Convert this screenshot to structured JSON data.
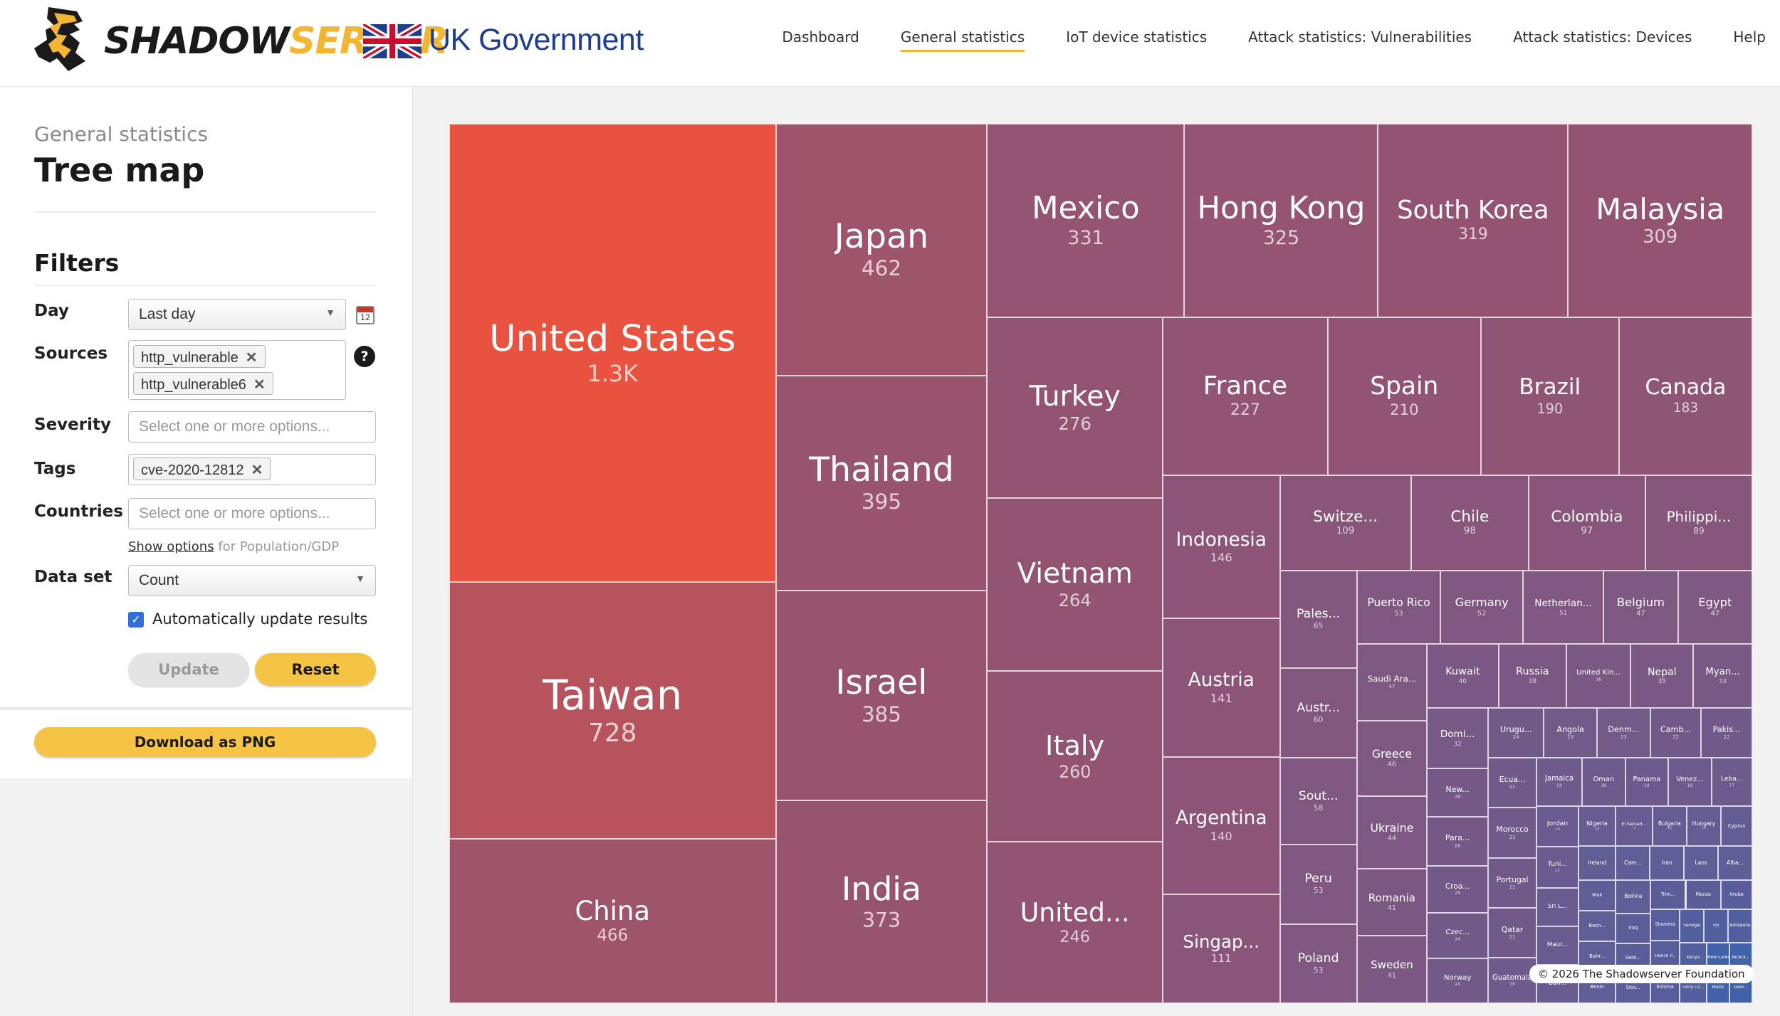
{
  "header": {
    "logo_text_a": "SHADOW",
    "logo_text_b": "SERVER",
    "gov_text": "UK Government",
    "nav": [
      {
        "label": "Dashboard",
        "active": false
      },
      {
        "label": "General statistics",
        "active": true
      },
      {
        "label": "IoT device statistics",
        "active": false
      },
      {
        "label": "Attack statistics: Vulnerabilities",
        "active": false
      },
      {
        "label": "Attack statistics: Devices",
        "active": false
      },
      {
        "label": "Help",
        "active": false
      }
    ]
  },
  "sidebar": {
    "subtitle": "General statistics",
    "title": "Tree map",
    "filters_heading": "Filters",
    "day_label": "Day",
    "day_value": "Last day",
    "sources_label": "Sources",
    "sources": [
      "http_vulnerable",
      "http_vulnerable6"
    ],
    "severity_label": "Severity",
    "severity_placeholder": "Select one or more options...",
    "tags_label": "Tags",
    "tags": [
      "cve-2020-12812"
    ],
    "countries_label": "Countries",
    "countries_placeholder": "Select one or more options...",
    "show_options_link": "Show options",
    "show_options_suffix": " for Population/GDP",
    "dataset_label": "Data set",
    "dataset_value": "Count",
    "auto_update_label": "Automatically update results",
    "auto_update_checked": true,
    "update_button": "Update",
    "reset_button": "Reset",
    "download_button": "Download as PNG",
    "calendar_icon": "calendar-icon",
    "help_glyph": "?"
  },
  "chart_data": {
    "type": "treemap",
    "colors": {
      "high": "#e9523f",
      "mid": "#935472",
      "low": "#4062ab"
    },
    "items": [
      {
        "name": "United States",
        "label": "United States",
        "display": "1.3K",
        "value": 1300
      },
      {
        "name": "Taiwan",
        "label": "Taiwan",
        "display": "728",
        "value": 728
      },
      {
        "name": "China",
        "label": "China",
        "display": "466",
        "value": 466
      },
      {
        "name": "Japan",
        "label": "Japan",
        "display": "462",
        "value": 462
      },
      {
        "name": "Thailand",
        "label": "Thailand",
        "display": "395",
        "value": 395
      },
      {
        "name": "Israel",
        "label": "Israel",
        "display": "385",
        "value": 385
      },
      {
        "name": "India",
        "label": "India",
        "display": "373",
        "value": 373
      },
      {
        "name": "Mexico",
        "label": "Mexico",
        "display": "331",
        "value": 331
      },
      {
        "name": "Hong Kong",
        "label": "Hong Kong",
        "display": "325",
        "value": 325
      },
      {
        "name": "South Korea",
        "label": "South Korea",
        "display": "319",
        "value": 319
      },
      {
        "name": "Malaysia",
        "label": "Malaysia",
        "display": "309",
        "value": 309
      },
      {
        "name": "Turkey",
        "label": "Turkey",
        "display": "276",
        "value": 276
      },
      {
        "name": "Vietnam",
        "label": "Vietnam",
        "display": "264",
        "value": 264
      },
      {
        "name": "Italy",
        "label": "Italy",
        "display": "260",
        "value": 260
      },
      {
        "name": "United...",
        "label": "United...",
        "display": "246",
        "value": 246
      },
      {
        "name": "France",
        "label": "France",
        "display": "227",
        "value": 227
      },
      {
        "name": "Spain",
        "label": "Spain",
        "display": "210",
        "value": 210
      },
      {
        "name": "Brazil",
        "label": "Brazil",
        "display": "190",
        "value": 190
      },
      {
        "name": "Canada",
        "label": "Canada",
        "display": "183",
        "value": 183
      },
      {
        "name": "Indonesia",
        "label": "Indonesia",
        "display": "146",
        "value": 146
      },
      {
        "name": "Austria",
        "label": "Austria",
        "display": "141",
        "value": 141
      },
      {
        "name": "Argentina",
        "label": "Argentina",
        "display": "140",
        "value": 140
      },
      {
        "name": "Singap...",
        "label": "Singap...",
        "display": "111",
        "value": 111
      },
      {
        "name": "Switze...",
        "label": "Switze...",
        "display": "109",
        "value": 109
      },
      {
        "name": "Chile",
        "label": "Chile",
        "display": "98",
        "value": 98
      },
      {
        "name": "Colombia",
        "label": "Colombia",
        "display": "97",
        "value": 97
      },
      {
        "name": "Philippi...",
        "label": "Philippi...",
        "display": "89",
        "value": 89
      },
      {
        "name": "Pales...",
        "label": "Pales...",
        "display": "65",
        "value": 65
      },
      {
        "name": "Austr...",
        "label": "Austr...",
        "display": "60",
        "value": 60
      },
      {
        "name": "Sout...",
        "label": "Sout...",
        "display": "58",
        "value": 58
      },
      {
        "name": "Peru",
        "label": "Peru",
        "display": "53",
        "value": 53
      },
      {
        "name": "Poland",
        "label": "Poland",
        "display": "53",
        "value": 53
      },
      {
        "name": "Puerto Rico",
        "label": "Puerto Rico",
        "display": "53",
        "value": 53
      },
      {
        "name": "Germany",
        "label": "Germany",
        "display": "52",
        "value": 52
      },
      {
        "name": "Netherlan...",
        "label": "Netherlan...",
        "display": "51",
        "value": 51
      },
      {
        "name": "Belgium",
        "label": "Belgium",
        "display": "47",
        "value": 47
      },
      {
        "name": "Egypt",
        "label": "Egypt",
        "display": "47",
        "value": 47
      },
      {
        "name": "Saudi Ara...",
        "label": "Saudi Ara...",
        "display": "47",
        "value": 47
      },
      {
        "name": "Greece",
        "label": "Greece",
        "display": "46",
        "value": 46
      },
      {
        "name": "Ukraine",
        "label": "Ukraine",
        "display": "44",
        "value": 44
      },
      {
        "name": "Romania",
        "label": "Romania",
        "display": "41",
        "value": 41
      },
      {
        "name": "Sweden",
        "label": "Sweden",
        "display": "41",
        "value": 41
      },
      {
        "name": "Kuwait",
        "label": "Kuwait",
        "display": "40",
        "value": 40
      },
      {
        "name": "Russia",
        "label": "Russia",
        "display": "38",
        "value": 38
      },
      {
        "name": "United Kin...",
        "label": "United Kin...",
        "display": "36",
        "value": 36
      },
      {
        "name": "Nepal",
        "label": "Nepal",
        "display": "35",
        "value": 35
      },
      {
        "name": "Myan...",
        "label": "Myan...",
        "display": "33",
        "value": 33
      },
      {
        "name": "Domi...",
        "label": "Domi...",
        "display": "32",
        "value": 32
      },
      {
        "name": "New...",
        "label": "New...",
        "display": "26",
        "value": 26
      },
      {
        "name": "Para...",
        "label": "Para...",
        "display": "26",
        "value": 26
      },
      {
        "name": "Croa...",
        "label": "Croa...",
        "display": "25",
        "value": 25
      },
      {
        "name": "Czec...",
        "label": "Czec...",
        "display": "24",
        "value": 24
      },
      {
        "name": "Norway",
        "label": "Norway",
        "display": "24",
        "value": 24
      },
      {
        "name": "Urugu...",
        "label": "Urugu...",
        "display": "24",
        "value": 24
      },
      {
        "name": "Angola",
        "label": "Angola",
        "display": "23",
        "value": 23
      },
      {
        "name": "Denm...",
        "label": "Denm...",
        "display": "23",
        "value": 23
      },
      {
        "name": "Camb...",
        "label": "Camb...",
        "display": "22",
        "value": 22
      },
      {
        "name": "Pakis...",
        "label": "Pakis...",
        "display": "22",
        "value": 22
      },
      {
        "name": "Ecua...",
        "label": "Ecua...",
        "display": "21",
        "value": 21
      },
      {
        "name": "Morocco",
        "label": "Morocco",
        "display": "21",
        "value": 21
      },
      {
        "name": "Portugal",
        "label": "Portugal",
        "display": "21",
        "value": 21
      },
      {
        "name": "Qatar",
        "label": "Qatar",
        "display": "21",
        "value": 21
      },
      {
        "name": "Guatemala",
        "label": "Guatemala",
        "display": "19",
        "value": 19
      },
      {
        "name": "Jamaica",
        "label": "Jamaica",
        "display": "19",
        "value": 19
      },
      {
        "name": "Oman",
        "label": "Oman",
        "display": "18",
        "value": 18
      },
      {
        "name": "Panama",
        "label": "Panama",
        "display": "18",
        "value": 18
      },
      {
        "name": "Venez...",
        "label": "Venez...",
        "display": "18",
        "value": 18
      },
      {
        "name": "Leba...",
        "label": "Leba...",
        "display": "17",
        "value": 17
      },
      {
        "name": "Jordan",
        "label": "Jordan",
        "display": "15",
        "value": 15
      },
      {
        "name": "Tuni...",
        "label": "Tuni...",
        "display": "15",
        "value": 15
      },
      {
        "name": "Sri L...",
        "label": "Sri L...",
        "display": "",
        "value": 14
      },
      {
        "name": "Maur...",
        "label": "Maur...",
        "display": "",
        "value": 14
      },
      {
        "name": "Ban...",
        "label": "Ban...",
        "display": "",
        "value": 14
      },
      {
        "name": "Nigeria",
        "label": "Nigeria",
        "display": "13",
        "value": 13
      },
      {
        "name": "El Salvad...",
        "label": "El Salvad...",
        "display": "13",
        "value": 13
      },
      {
        "name": "Bulgaria",
        "label": "Bulgaria",
        "display": "12",
        "value": 12
      },
      {
        "name": "Hungary",
        "label": "Hungary",
        "display": "12",
        "value": 12
      },
      {
        "name": "Cyprus",
        "label": "Cyprus",
        "display": "",
        "value": 11
      },
      {
        "name": "Ireland",
        "label": "Ireland",
        "display": "",
        "value": 11
      },
      {
        "name": "Mali",
        "label": "Mali",
        "display": "",
        "value": 10
      },
      {
        "name": "Bosn...",
        "label": "Bosn...",
        "display": "",
        "value": 10
      },
      {
        "name": "Bahr...",
        "label": "Bahr...",
        "display": "",
        "value": 10
      },
      {
        "name": "Benin",
        "label": "Benin",
        "display": "",
        "value": 10
      },
      {
        "name": "Cam...",
        "label": "Cam...",
        "display": "",
        "value": 10
      },
      {
        "name": "Iran",
        "label": "Iran",
        "display": "",
        "value": 10
      },
      {
        "name": "Laos",
        "label": "Laos",
        "display": "",
        "value": 10
      },
      {
        "name": "Alba...",
        "label": "Alba...",
        "display": "",
        "value": 10
      },
      {
        "name": "Bolivia",
        "label": "Bolivia",
        "display": "",
        "value": 10
      },
      {
        "name": "Iraq",
        "label": "Iraq",
        "display": "",
        "value": 9
      },
      {
        "name": "Serb...",
        "label": "Serb...",
        "display": "",
        "value": 9
      },
      {
        "name": "Slov...",
        "label": "Slov...",
        "display": "",
        "value": 9
      },
      {
        "name": "Trini...",
        "label": "Trini...",
        "display": "",
        "value": 9
      },
      {
        "name": "Macao",
        "label": "Macao",
        "display": "",
        "value": 9
      },
      {
        "name": "Aruba",
        "label": "Aruba",
        "display": "",
        "value": 8
      },
      {
        "name": "Slovenia",
        "label": "Slovenia",
        "display": "",
        "value": 8
      },
      {
        "name": "French P...",
        "label": "French P...",
        "display": "",
        "value": 8
      },
      {
        "name": "Estonia",
        "label": "Estonia",
        "display": "",
        "value": 8
      },
      {
        "name": "Senegal",
        "label": "Senegal",
        "display": "",
        "value": 7
      },
      {
        "name": "Fiji",
        "label": "Fiji",
        "display": "",
        "value": 7
      },
      {
        "name": "Botswana",
        "label": "Botswana",
        "display": "",
        "value": 7
      },
      {
        "name": "Kenya",
        "label": "Kenya",
        "display": "",
        "value": 7
      },
      {
        "name": "Ivory Co...",
        "label": "Ivory Co...",
        "display": "",
        "value": 7
      },
      {
        "name": "New Caled...",
        "label": "New Caled...",
        "display": "",
        "value": 6
      },
      {
        "name": "Nicara...",
        "label": "Nicara...",
        "display": "",
        "value": 6
      },
      {
        "name": "Malta",
        "label": "Malta",
        "display": "",
        "value": 6
      },
      {
        "name": "Geor...",
        "label": "Geor...",
        "display": "",
        "value": 6
      }
    ]
  },
  "copyright": "© 2026 The Shadowserver Foundation"
}
